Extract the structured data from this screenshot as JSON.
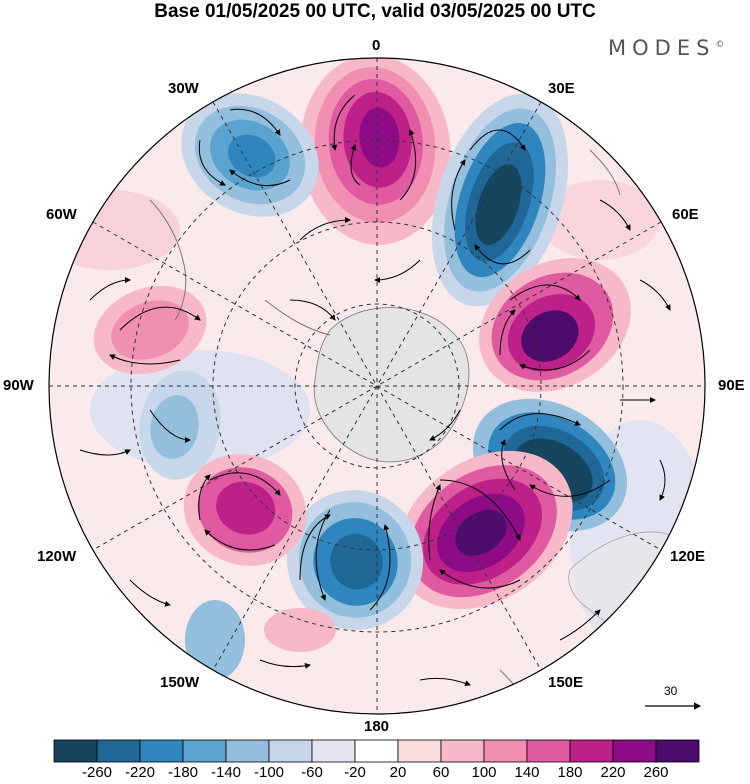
{
  "title": "Base 01/05/2025 00 UTC, valid 03/05/2025 00 UTC",
  "brand": "MODES",
  "brand_mark": "©",
  "longitude_labels": {
    "top": "0",
    "top_left": "30W",
    "top_right": "30E",
    "left_upper": "60W",
    "right_upper": "60E",
    "left": "90W",
    "right": "90E",
    "left_lower": "120W",
    "right_lower": "120E",
    "bottom_left": "150W",
    "bottom_right": "150E",
    "bottom": "180"
  },
  "vector_scale_label": "30",
  "colorbar": {
    "colors": [
      "#16465f",
      "#1f6796",
      "#2f86bf",
      "#5aa3cf",
      "#93bfdc",
      "#c8d6ea",
      "#e5e5f2",
      "#ffffff",
      "#fbdde0",
      "#f7b9c8",
      "#f08fb1",
      "#df5aa0",
      "#bd2189",
      "#8e0b86",
      "#4d0c6b"
    ],
    "tick_labels": [
      "-260",
      "-220",
      "-180",
      "-140",
      "-100",
      "-60",
      "-20",
      "20",
      "60",
      "100",
      "140",
      "180",
      "220",
      "260"
    ]
  }
}
